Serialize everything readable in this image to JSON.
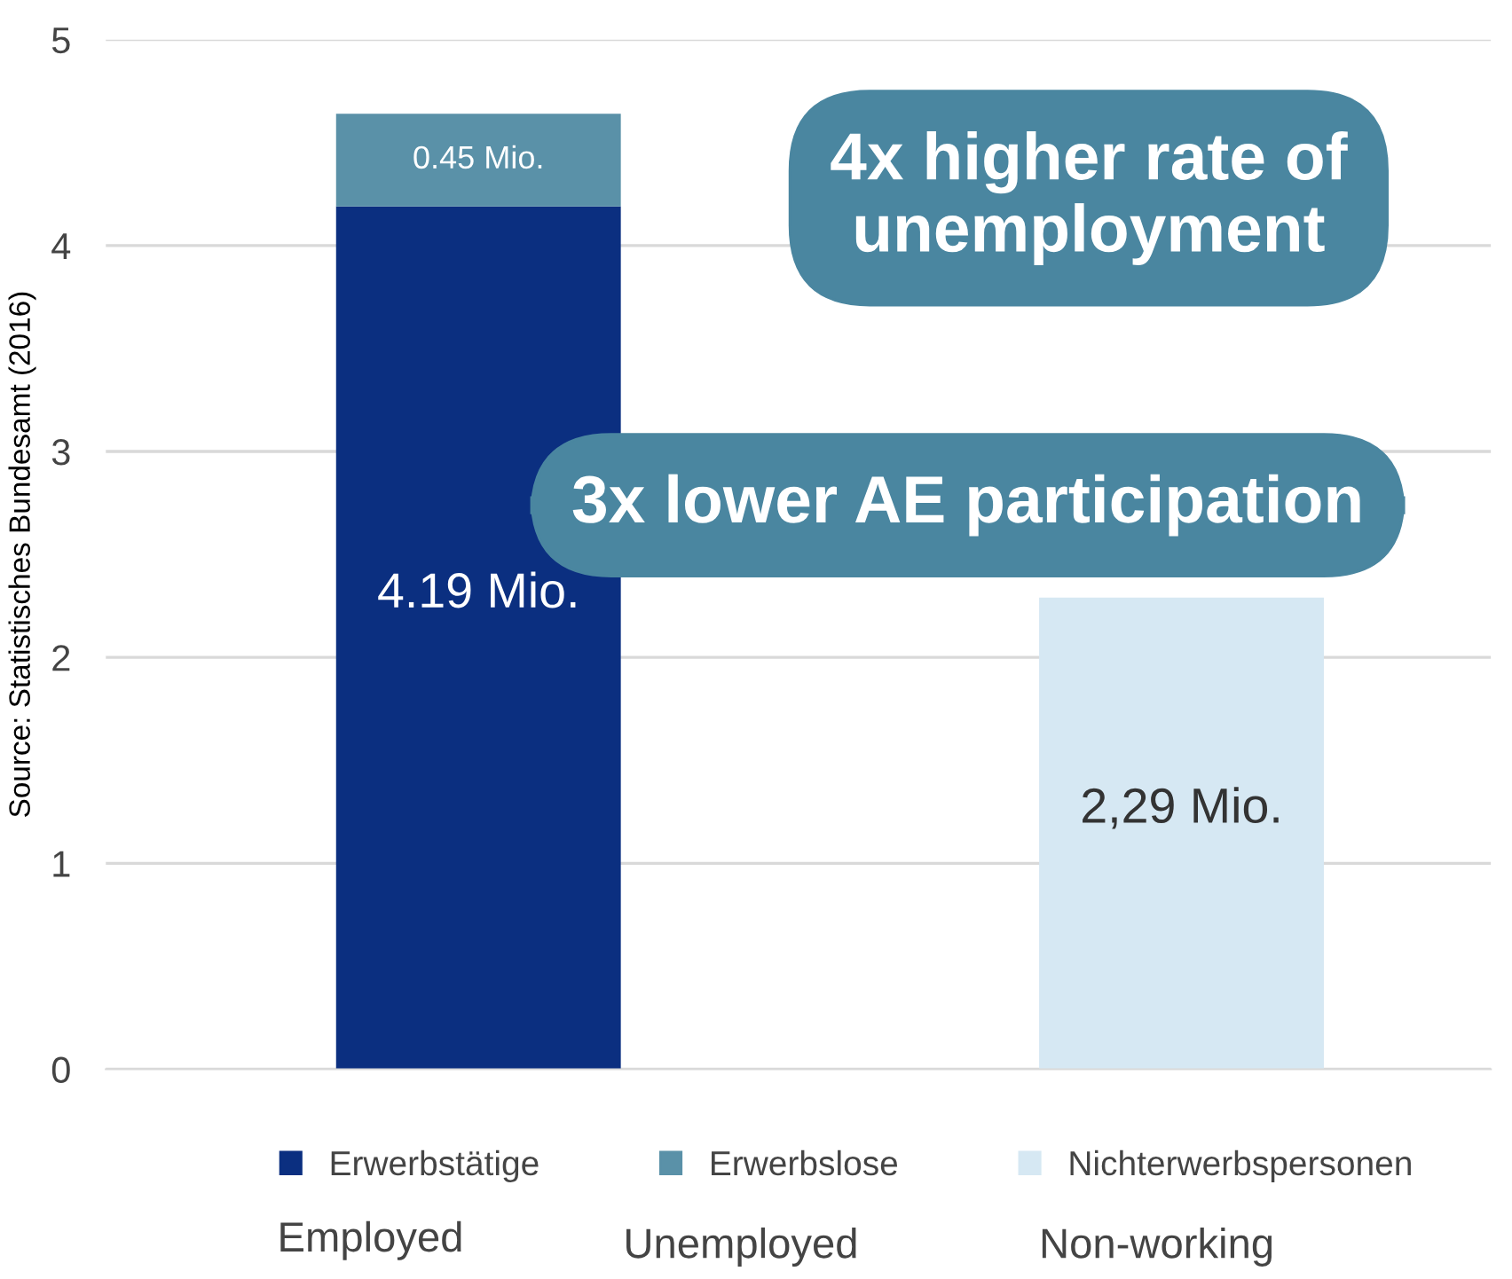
{
  "chart_data": {
    "type": "bar",
    "stacked": true,
    "ylabel": "Source: Statistisches Bundesamt (2016)",
    "categories": [
      null,
      null
    ],
    "series": [
      {
        "name": "Erwerbstätige",
        "color": "#0b2f80",
        "values": [
          4.19,
          null
        ],
        "value_labels": [
          "4.19 Mio.",
          null
        ]
      },
      {
        "name": "Erwerbslose",
        "color": "#5a91a8",
        "values": [
          0.45,
          null
        ],
        "value_labels": [
          "0.45 Mio.",
          null
        ]
      },
      {
        "name": "Nichterwerbspersonen",
        "color": "#d6e8f3",
        "values": [
          null,
          2.29
        ],
        "value_labels": [
          null,
          "2,29 Mio."
        ]
      }
    ],
    "ylim": [
      0,
      5
    ],
    "yticks": [
      0,
      1,
      2,
      3,
      4,
      5
    ],
    "grid": "y",
    "legend": "bottom",
    "annotations": [
      "4x higher rate of unemployment",
      "3x lower AE participation",
      "Employed",
      "Unemployed",
      "Non-working"
    ]
  }
}
